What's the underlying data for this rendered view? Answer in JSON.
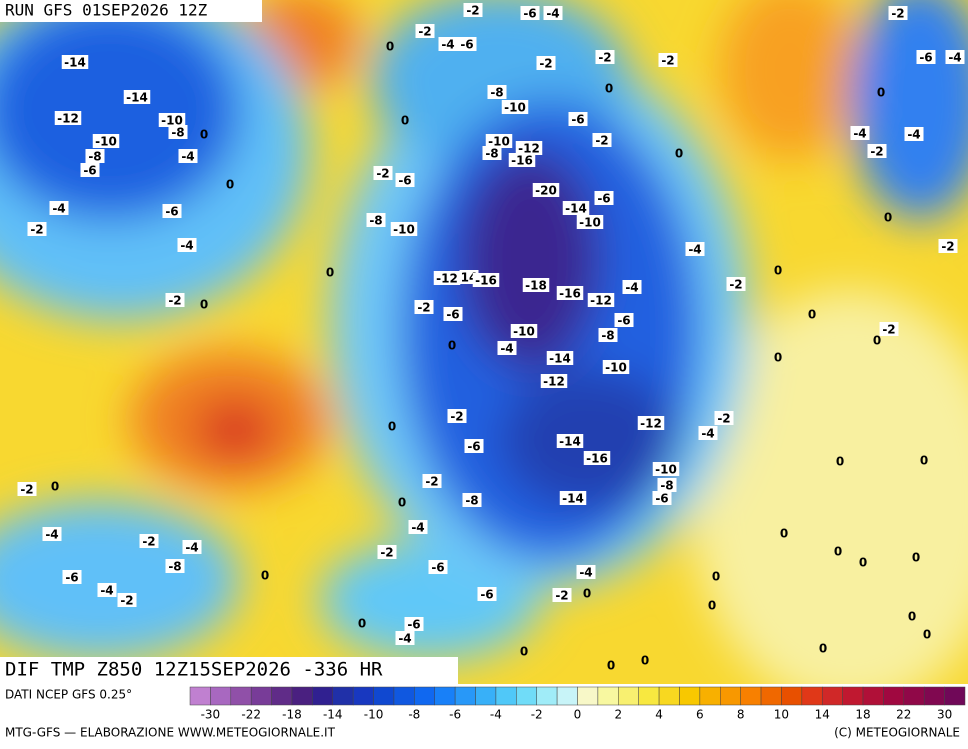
{
  "header": {
    "run": "RUN GFS 01SEP2026 12Z"
  },
  "map": {
    "title": "DIF TMP Z850 12Z15SEP2026 -336 HR",
    "contour_labels": [
      -2,
      -6,
      -4,
      -2,
      0,
      -2,
      -4,
      -6,
      -14,
      -2,
      -2,
      -2,
      -6,
      -4,
      -14,
      0,
      0,
      -8,
      -10,
      -12,
      -10,
      -8,
      0,
      -6,
      0,
      -4,
      -4,
      -10,
      -2,
      -8,
      -4,
      -10,
      -8,
      -12,
      -16,
      0,
      -2,
      -6,
      0,
      -2,
      -6,
      -20,
      -6,
      -4,
      -6,
      -14,
      -10,
      0,
      -8,
      -10,
      -2,
      -4,
      -4,
      -2,
      0,
      -12,
      14,
      -16,
      -18,
      0,
      -2,
      -4,
      -16,
      -12,
      -2,
      -6,
      -2,
      0,
      0,
      -6,
      -2,
      0,
      -8,
      -10,
      -4,
      0,
      -14,
      -10,
      0,
      -12,
      -2,
      0,
      -12,
      -2,
      -4,
      -14,
      -6,
      -16,
      0,
      0,
      -10,
      -8,
      -6,
      -2,
      0,
      -2,
      -14,
      -8,
      0,
      -4,
      -4,
      0,
      -2,
      -4,
      -2,
      0,
      0,
      0,
      -8,
      -6,
      -6,
      0,
      -4,
      0,
      -4,
      -2,
      -6,
      -2,
      0,
      0,
      0,
      0,
      -6,
      -4,
      0,
      0,
      0,
      0,
      0
    ]
  },
  "colorbar": {
    "source": "DATI NCEP GFS 0.25°",
    "ticks": [
      -30,
      -22,
      -18,
      -14,
      -10,
      -8,
      -6,
      -4,
      -2,
      0,
      2,
      4,
      6,
      8,
      10,
      14,
      18,
      22,
      30
    ],
    "colors": [
      "#c080d0",
      "#a868c0",
      "#9050a8",
      "#783c98",
      "#602c88",
      "#4a2080",
      "#302090",
      "#2030a8",
      "#1838c0",
      "#1048d0",
      "#1058e0",
      "#1068f0",
      "#1880f8",
      "#2898f8",
      "#38b0f8",
      "#50c8f8",
      "#70dcf8",
      "#a0ecf8",
      "#c8f4f8",
      "#f8f8c8",
      "#f8f8a0",
      "#f8f070",
      "#f8e840",
      "#f8d820",
      "#f8c800",
      "#f8b000",
      "#f89800",
      "#f88000",
      "#f06800",
      "#e85000",
      "#e03818",
      "#d02828",
      "#c01830",
      "#b01038",
      "#a00840",
      "#900848",
      "#800850",
      "#700858"
    ]
  },
  "footer": {
    "left": "MTG-GFS — ELABORAZIONE WWW.METEOGIORNALE.IT",
    "right": "(C) METEOGIORNALE"
  }
}
